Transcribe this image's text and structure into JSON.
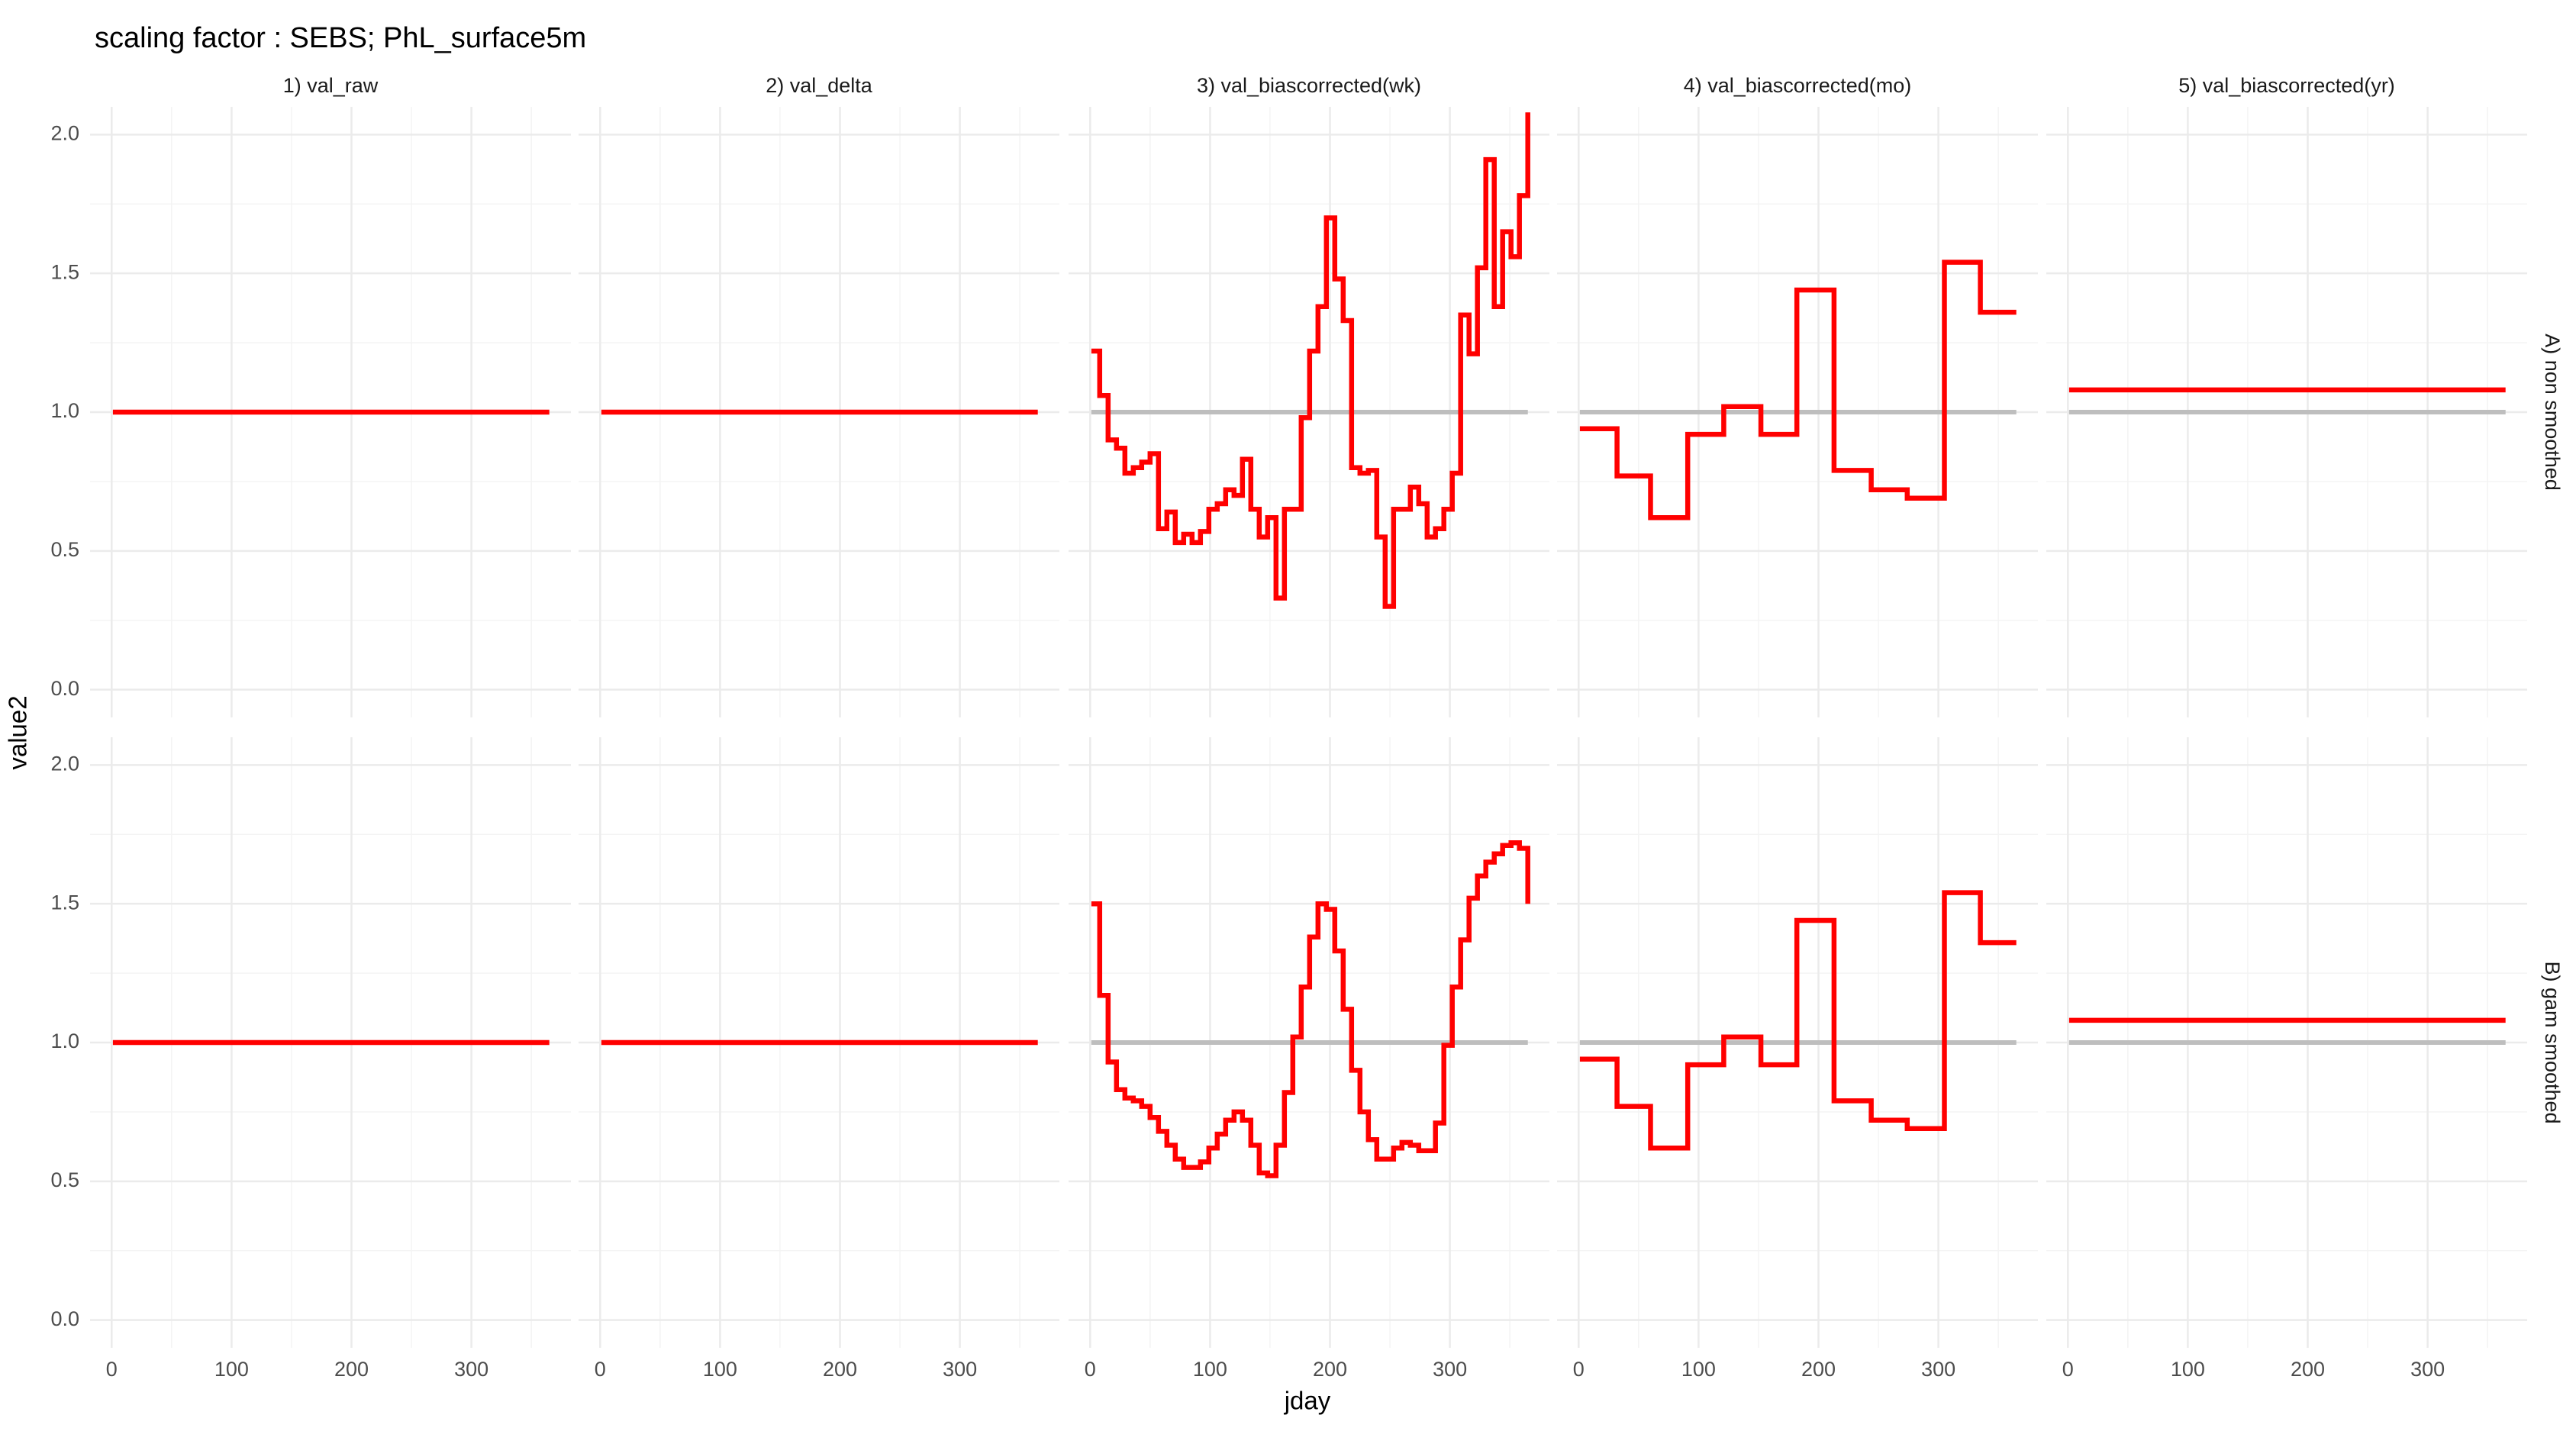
{
  "chart_data": {
    "type": "line",
    "title": "scaling factor : SEBS; PhL_surface5m",
    "xlabel": "jday",
    "ylabel": "value2",
    "xlim": [
      -18,
      383
    ],
    "ylim": [
      -0.1,
      2.1
    ],
    "x_ticks": [
      0,
      100,
      200,
      300
    ],
    "y_ticks": [
      0.0,
      0.5,
      1.0,
      1.5,
      2.0
    ],
    "y_tick_labels": [
      "0.0",
      "0.5",
      "1.0",
      "1.5",
      "2.0"
    ],
    "grid": true,
    "legend": "none",
    "colors": {
      "series": "#ff0000",
      "reference": "#bebebe",
      "grid_major": "#ebebeb",
      "grid_minor": "#f4f4f4",
      "text": "#4d4d4d"
    },
    "columns": [
      "1) val_raw",
      "2) val_delta",
      "3) val_biascorrected(wk)",
      "4) val_biascorrected(mo)",
      "5) val_biascorrected(yr)"
    ],
    "rows": [
      "A) non smoothed",
      "B) gam smoothed"
    ],
    "reference_value": 1.0,
    "panels": [
      {
        "row": 0,
        "col": 0,
        "reference": false,
        "x": [
          1,
          365
        ],
        "y": [
          1.0,
          1.0
        ]
      },
      {
        "row": 0,
        "col": 1,
        "reference": false,
        "x": [
          1,
          365
        ],
        "y": [
          1.0,
          1.0
        ]
      },
      {
        "row": 0,
        "col": 2,
        "reference": true,
        "x": [
          1,
          8,
          15,
          22,
          29,
          36,
          43,
          50,
          57,
          64,
          71,
          78,
          85,
          92,
          99,
          106,
          113,
          120,
          127,
          134,
          141,
          148,
          155,
          162,
          169,
          176,
          183,
          190,
          197,
          204,
          211,
          218,
          225,
          232,
          239,
          246,
          253,
          260,
          267,
          274,
          281,
          288,
          295,
          302,
          309,
          316,
          323,
          330,
          337,
          344,
          351,
          358,
          365
        ],
        "y": [
          1.22,
          1.06,
          0.9,
          0.87,
          0.78,
          0.8,
          0.82,
          0.85,
          0.58,
          0.64,
          0.53,
          0.56,
          0.53,
          0.57,
          0.65,
          0.67,
          0.72,
          0.7,
          0.83,
          0.65,
          0.55,
          0.62,
          0.33,
          0.65,
          0.65,
          0.98,
          1.22,
          1.38,
          1.7,
          1.48,
          1.33,
          0.8,
          0.78,
          0.79,
          0.55,
          0.3,
          0.65,
          0.65,
          0.73,
          0.67,
          0.55,
          0.58,
          0.65,
          0.78,
          1.35,
          1.21,
          1.52,
          1.91,
          1.38,
          1.65,
          1.56,
          1.78,
          2.08
        ]
      },
      {
        "row": 0,
        "col": 3,
        "reference": true,
        "x": [
          1,
          32,
          60,
          91,
          121,
          152,
          182,
          213,
          244,
          274,
          305,
          335,
          365
        ],
        "y": [
          0.94,
          0.77,
          0.62,
          0.92,
          1.02,
          0.92,
          1.44,
          0.79,
          0.72,
          0.69,
          1.54,
          1.36,
          1.36
        ]
      },
      {
        "row": 0,
        "col": 4,
        "reference": true,
        "x": [
          1,
          365
        ],
        "y": [
          1.08,
          1.08
        ]
      },
      {
        "row": 1,
        "col": 0,
        "reference": false,
        "x": [
          1,
          365
        ],
        "y": [
          1.0,
          1.0
        ]
      },
      {
        "row": 1,
        "col": 1,
        "reference": false,
        "x": [
          1,
          365
        ],
        "y": [
          1.0,
          1.0
        ]
      },
      {
        "row": 1,
        "col": 2,
        "reference": true,
        "x": [
          1,
          8,
          15,
          22,
          29,
          36,
          43,
          50,
          57,
          64,
          71,
          78,
          85,
          92,
          99,
          106,
          113,
          120,
          127,
          134,
          141,
          148,
          155,
          162,
          169,
          176,
          183,
          190,
          197,
          204,
          211,
          218,
          225,
          232,
          239,
          246,
          253,
          260,
          267,
          274,
          281,
          288,
          295,
          302,
          309,
          316,
          323,
          330,
          337,
          344,
          351,
          358,
          365
        ],
        "y": [
          1.5,
          1.17,
          0.93,
          0.83,
          0.8,
          0.79,
          0.77,
          0.73,
          0.68,
          0.63,
          0.58,
          0.55,
          0.55,
          0.57,
          0.62,
          0.67,
          0.72,
          0.75,
          0.72,
          0.63,
          0.53,
          0.52,
          0.63,
          0.82,
          1.02,
          1.2,
          1.38,
          1.5,
          1.48,
          1.33,
          1.12,
          0.9,
          0.75,
          0.65,
          0.58,
          0.58,
          0.62,
          0.64,
          0.63,
          0.61,
          0.61,
          0.71,
          0.99,
          1.2,
          1.37,
          1.52,
          1.6,
          1.65,
          1.68,
          1.71,
          1.72,
          1.7,
          1.5
        ]
      },
      {
        "row": 1,
        "col": 3,
        "reference": true,
        "x": [
          1,
          32,
          60,
          91,
          121,
          152,
          182,
          213,
          244,
          274,
          305,
          335,
          365
        ],
        "y": [
          0.94,
          0.77,
          0.62,
          0.92,
          1.02,
          0.92,
          1.44,
          0.79,
          0.72,
          0.69,
          1.54,
          1.36,
          1.36
        ]
      },
      {
        "row": 1,
        "col": 4,
        "reference": true,
        "x": [
          1,
          365
        ],
        "y": [
          1.08,
          1.08
        ]
      }
    ]
  }
}
